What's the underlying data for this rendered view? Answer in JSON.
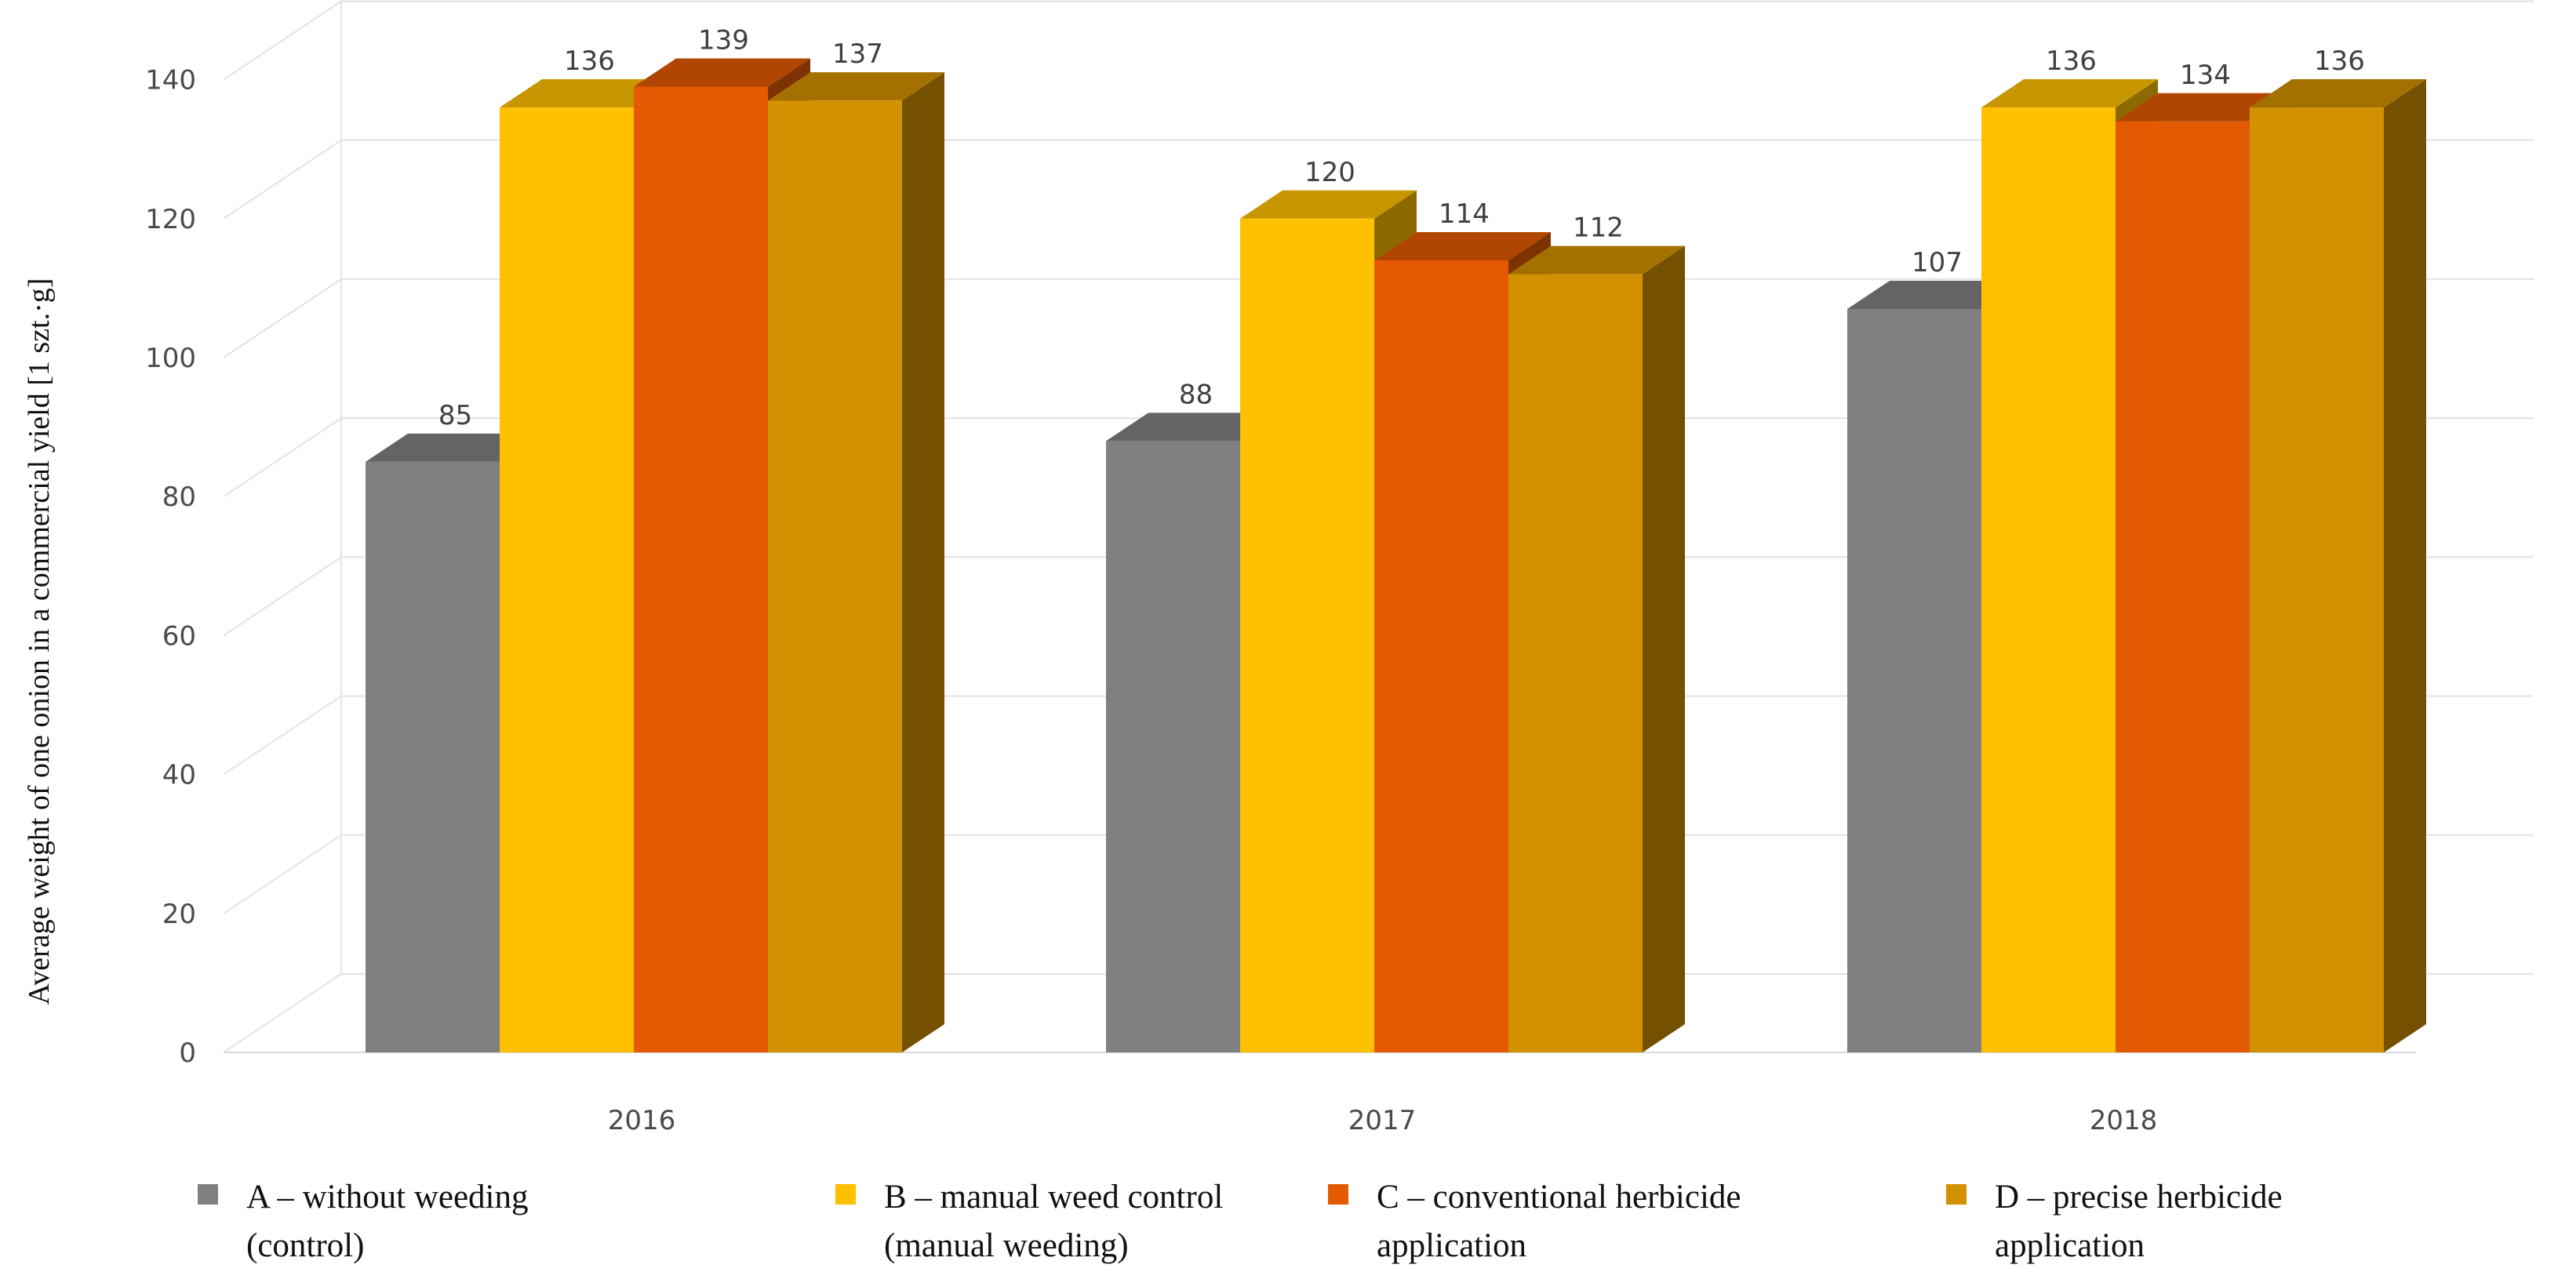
{
  "chart_data": {
    "type": "bar",
    "style": "3d-clustered-column",
    "title": "",
    "xlabel": "",
    "ylabel": "Average weight of one onion in a commercial yield [1 szt.·g]",
    "ylim": [
      0,
      140
    ],
    "yticks": [
      0,
      20,
      40,
      60,
      80,
      100,
      120,
      140
    ],
    "grid": true,
    "legend_position": "bottom",
    "categories": [
      "2016",
      "2017",
      "2018"
    ],
    "series": [
      {
        "name": "A – without weeding (control)",
        "legend_lines": [
          "A – without weeding",
          "(control)"
        ],
        "color": "#808080",
        "values": [
          85,
          88,
          107
        ]
      },
      {
        "name": "B – manual weed control (manual weeding)",
        "legend_lines": [
          "B – manual weed control",
          "(manual weeding)"
        ],
        "color": "#FFC000",
        "values": [
          136,
          120,
          136
        ]
      },
      {
        "name": "C – conventional herbicide application",
        "legend_lines": [
          "C – conventional herbicide",
          "application"
        ],
        "color": "#E35A02",
        "values": [
          139,
          114,
          134
        ]
      },
      {
        "name": "D – precise herbicide application",
        "legend_lines": [
          "D – precise herbicide",
          "application"
        ],
        "color": "#D29100",
        "values": [
          137,
          112,
          136
        ]
      }
    ]
  }
}
